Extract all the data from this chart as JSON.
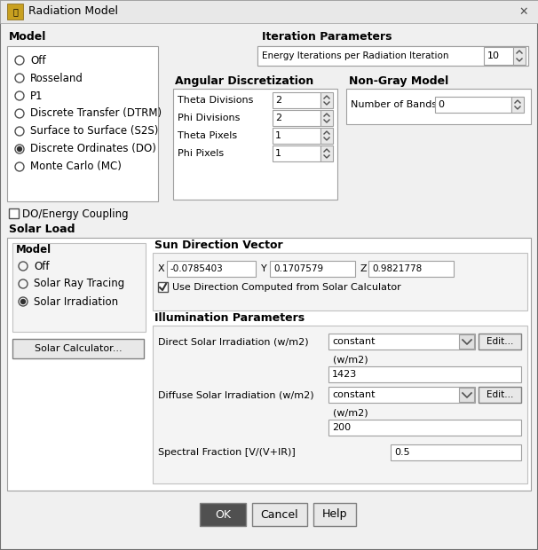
{
  "title": "Radiation Model",
  "bg_color": "#f0f0f0",
  "dialog_bg": "#f0f0f0",
  "panel_bg": "#ffffff",
  "border_color": "#a0a0a0",
  "text_color": "#000000",
  "bold_color": "#000000",
  "input_bg": "#ffffff",
  "input_border": "#a0a0a0",
  "button_bg": "#e0e0e0",
  "ok_bg": "#505050",
  "ok_text": "#ffffff",
  "section_header_color": "#000000",
  "model_items": [
    "Off",
    "Rosseland",
    "P1",
    "Discrete Transfer (DTRM)",
    "Surface to Surface (S2S)",
    "Discrete Ordinates (DO)",
    "Monte Carlo (MC)"
  ],
  "model_selected": 5,
  "solar_model_items": [
    "Off",
    "Solar Ray Tracing",
    "Solar Irradiation"
  ],
  "solar_model_selected": 2,
  "iteration_label": "Energy Iterations per Radiation Iteration",
  "iteration_value": "10",
  "angular_label": "Angular Discretization",
  "angular_fields": [
    "Theta Divisions",
    "Phi Divisions",
    "Theta Pixels",
    "Phi Pixels"
  ],
  "angular_values": [
    "2",
    "2",
    "1",
    "1"
  ],
  "nongray_label": "Non-Gray Model",
  "nongray_field": "Number of Bands",
  "nongray_value": "0",
  "sun_direction_label": "Sun Direction Vector",
  "sun_x_label": "X",
  "sun_x_value": "-0.0785403",
  "sun_y_label": "Y",
  "sun_y_value": "0.1707579",
  "sun_z_label": "Z",
  "sun_z_value": "0.9821778",
  "use_direction_label": "Use Direction Computed from Solar Calculator",
  "illumination_label": "Illumination Parameters",
  "direct_solar_label": "Direct Solar Irradiation (w/m2)",
  "direct_solar_dropdown": "constant",
  "direct_solar_unit": "(w/m2)",
  "direct_solar_value": "1423",
  "diffuse_solar_label": "Diffuse Solar Irradiation (w/m2)",
  "diffuse_solar_dropdown": "constant",
  "diffuse_solar_unit": "(w/m2)",
  "diffuse_solar_value": "200",
  "spectral_label": "Spectral Fraction [V/(V+IR)]",
  "spectral_value": "0.5",
  "solar_calc_button": "Solar Calculator...",
  "do_energy_label": "DO/Energy Coupling",
  "ok_label": "OK",
  "cancel_label": "Cancel",
  "help_label": "Help"
}
